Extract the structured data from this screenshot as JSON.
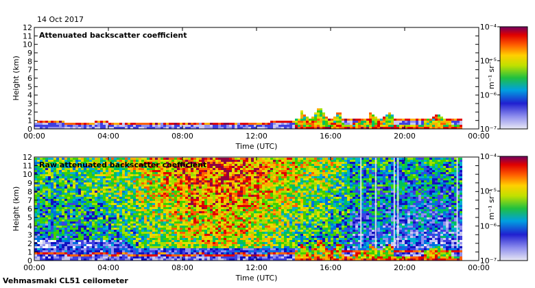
{
  "date": "14 Oct 2017",
  "footer": "Vehmasmaki CL51 ceilometer",
  "chart_data": [
    {
      "type": "heatmap",
      "title": "Attenuated backscatter coefficient",
      "xlabel": "Time (UTC)",
      "ylabel": "Height (km)",
      "x_ticks": [
        "00:00",
        "04:00",
        "08:00",
        "12:00",
        "16:00",
        "20:00",
        "00:00"
      ],
      "xlim_hours": [
        0,
        24
      ],
      "y_ticks": [
        "0",
        "1",
        "2",
        "3",
        "4",
        "5",
        "6",
        "7",
        "8",
        "9",
        "10",
        "11",
        "12"
      ],
      "ylim_km": [
        0,
        12
      ],
      "colorbar": {
        "label": "m⁻¹ sr⁻¹",
        "ticks": [
          "10⁻⁷",
          "10⁻⁶",
          "10⁻⁵",
          "10⁻⁴"
        ],
        "scale": "log"
      },
      "data_end_hour": 23
    },
    {
      "type": "heatmap",
      "title": "Raw attenuated backscatter coefficient",
      "xlabel": "Time (UTC)",
      "ylabel": "Height (km)",
      "x_ticks": [
        "00:00",
        "04:00",
        "08:00",
        "12:00",
        "16:00",
        "20:00",
        "00:00"
      ],
      "xlim_hours": [
        0,
        24
      ],
      "y_ticks": [
        "0",
        "1",
        "2",
        "3",
        "4",
        "5",
        "6",
        "7",
        "8",
        "9",
        "10",
        "11",
        "12"
      ],
      "ylim_km": [
        0,
        12
      ],
      "colorbar": {
        "label": "m⁻¹ sr⁻¹",
        "ticks": [
          "10⁻⁷",
          "10⁻⁶",
          "10⁻⁵",
          "10⁻⁴"
        ],
        "scale": "log"
      },
      "data_end_hour": 23
    }
  ]
}
